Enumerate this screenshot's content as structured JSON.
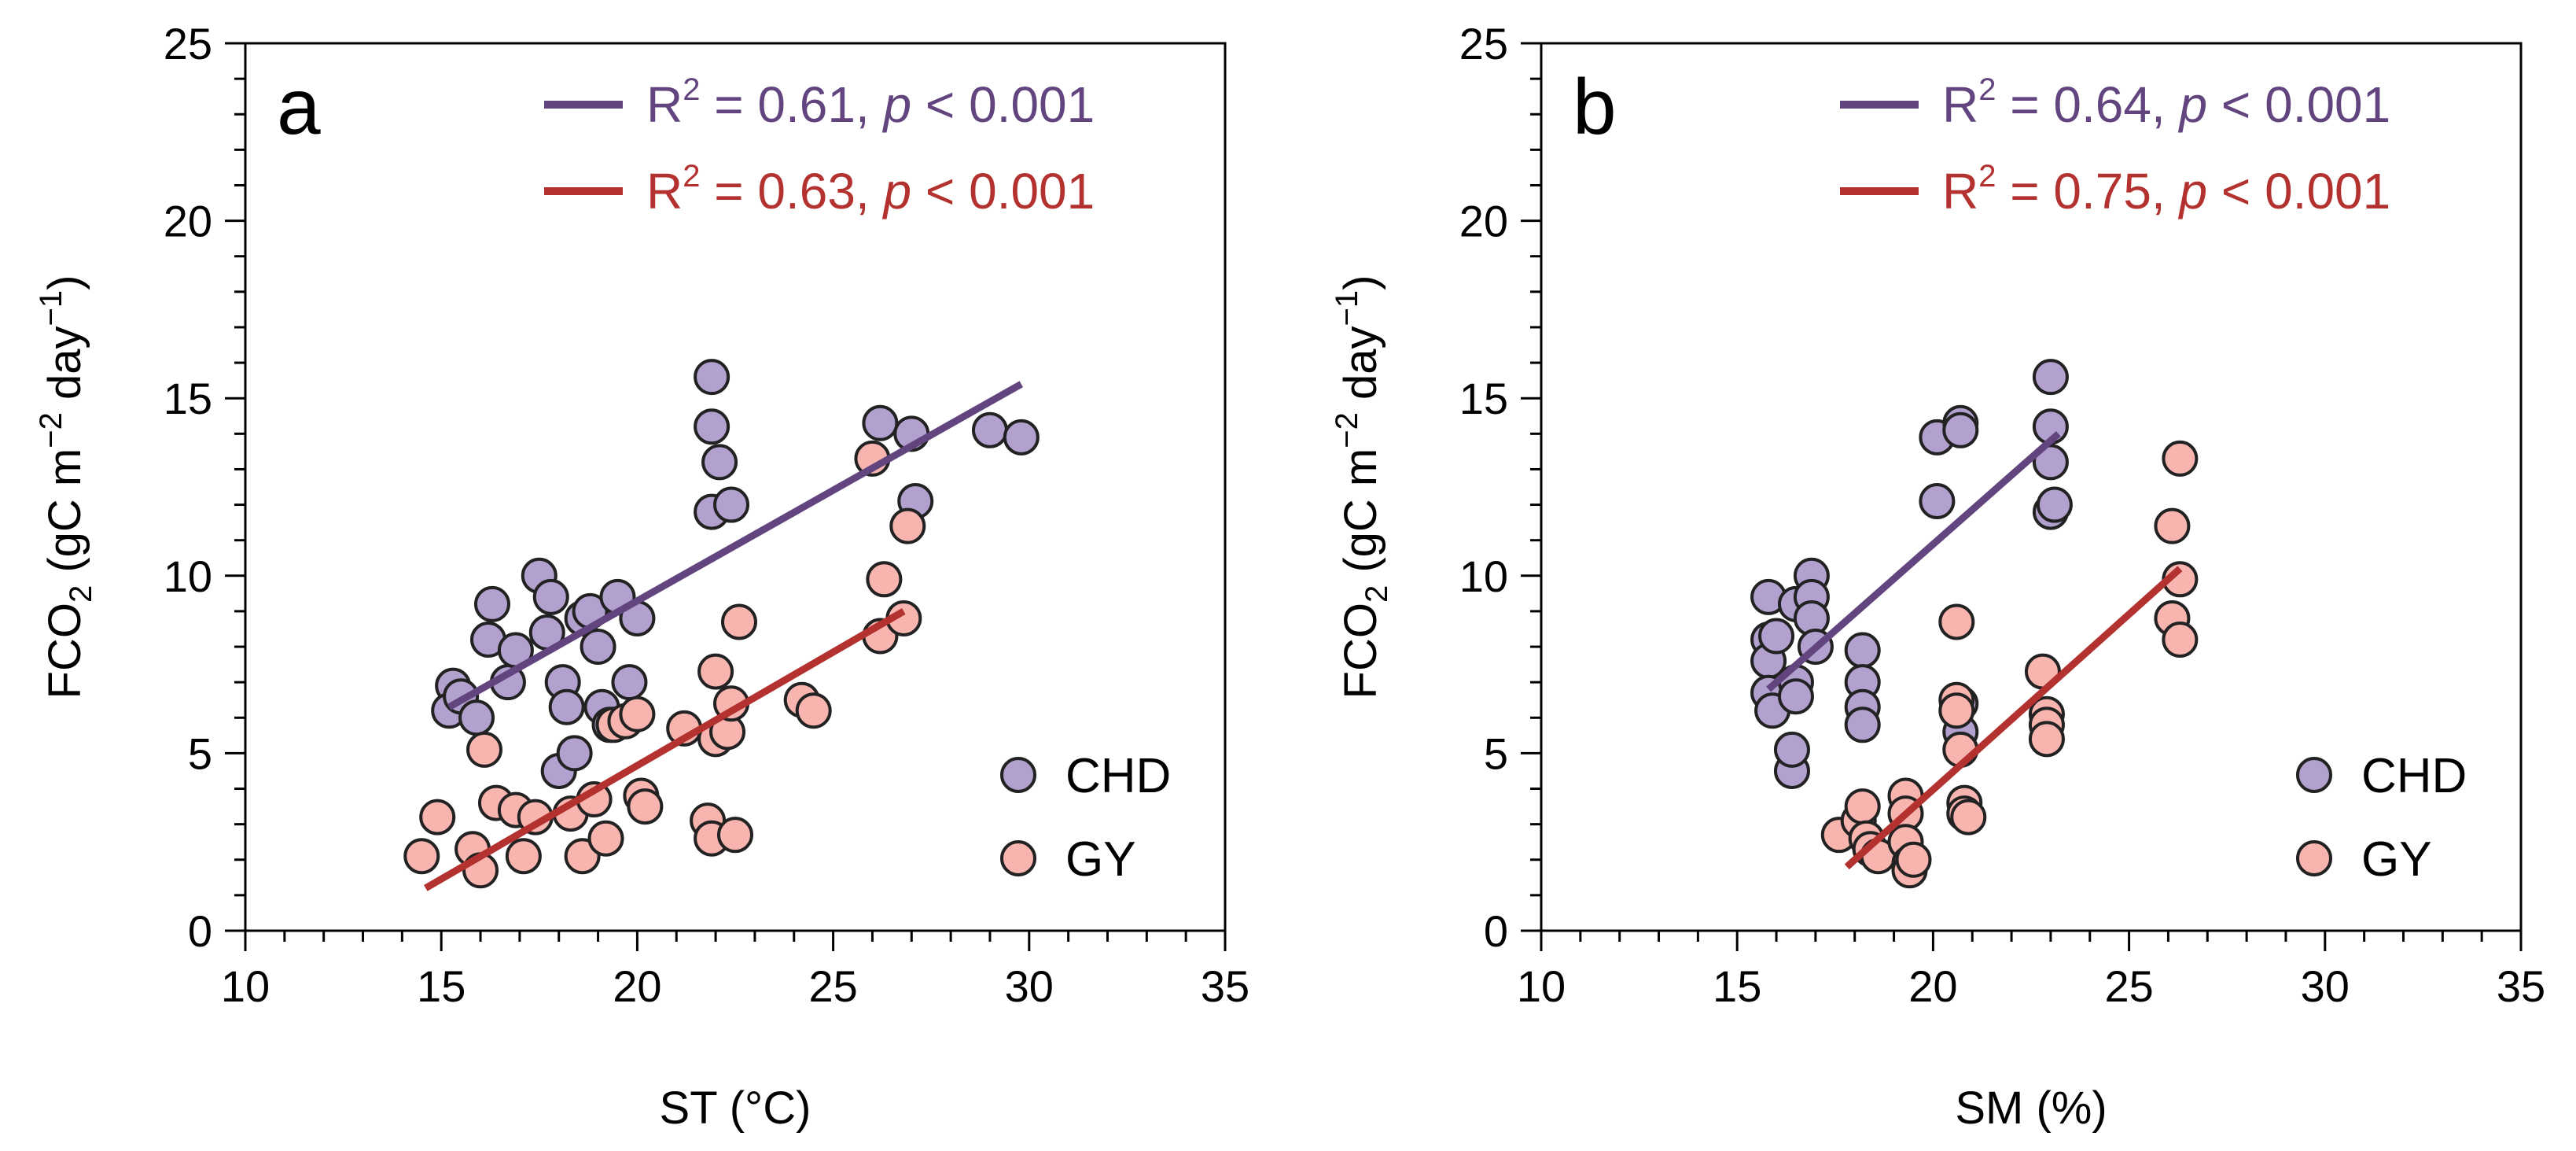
{
  "chart_data": [
    {
      "type": "scatter",
      "panel_label": "a",
      "xlabel": "ST (°C)",
      "ylabel": {
        "main": "FCO",
        "sub": "2",
        "unit_pre": " (gC m",
        "sup1": "−2",
        "unit_mid": " day",
        "sup2": "−1",
        "unit_post": ")"
      },
      "xlim": [
        10,
        35
      ],
      "ylim": [
        0,
        25
      ],
      "xticks": [
        "10",
        "15",
        "20",
        "25",
        "30",
        "35"
      ],
      "yticks": [
        "0",
        "5",
        "10",
        "15",
        "20",
        "25"
      ],
      "legend": {
        "position": "bottom-right",
        "entries": [
          "CHD",
          "GY"
        ]
      },
      "fits": [
        {
          "series": "CHD",
          "r2_label": "R",
          "r2_sup": "2",
          "r2_value": " = 0.61, ",
          "p_label": "p",
          "p_value": " < 0.001",
          "color": "#62457f",
          "x": [
            15.2,
            29.8
          ],
          "y": [
            6.3,
            15.4
          ]
        },
        {
          "series": "GY",
          "r2_label": "R",
          "r2_sup": "2",
          "r2_value": " = 0.63, ",
          "p_label": "p",
          "p_value": " < 0.001",
          "color": "#b3312e",
          "x": [
            14.6,
            26.8
          ],
          "y": [
            1.2,
            9.0
          ]
        }
      ],
      "series": [
        {
          "name": "CHD",
          "color": "#b2a1cf",
          "points": [
            [
              15.3,
              6.9
            ],
            [
              15.2,
              6.2
            ],
            [
              15.5,
              6.6
            ],
            [
              15.9,
              6.0
            ],
            [
              16.2,
              8.2
            ],
            [
              16.3,
              9.2
            ],
            [
              16.7,
              7.0
            ],
            [
              16.9,
              7.9
            ],
            [
              17.5,
              10.0
            ],
            [
              17.7,
              8.4
            ],
            [
              17.8,
              9.4
            ],
            [
              18.0,
              4.5
            ],
            [
              18.1,
              7.0
            ],
            [
              18.2,
              6.3
            ],
            [
              18.4,
              5.0
            ],
            [
              18.6,
              8.8
            ],
            [
              18.8,
              9.0
            ],
            [
              19.0,
              8.0
            ],
            [
              19.1,
              6.3
            ],
            [
              19.3,
              5.8
            ],
            [
              19.5,
              9.4
            ],
            [
              19.8,
              7.0
            ],
            [
              20.0,
              8.8
            ],
            [
              21.9,
              15.6
            ],
            [
              21.9,
              14.2
            ],
            [
              21.9,
              11.8
            ],
            [
              22.1,
              13.2
            ],
            [
              22.4,
              12.0
            ],
            [
              26.2,
              14.3
            ],
            [
              27.0,
              14.0
            ],
            [
              27.1,
              12.1
            ],
            [
              29.0,
              14.1
            ],
            [
              29.8,
              13.9
            ]
          ]
        },
        {
          "name": "GY",
          "color": "#f8b5b0",
          "points": [
            [
              14.5,
              2.1
            ],
            [
              14.9,
              3.2
            ],
            [
              15.8,
              2.3
            ],
            [
              16.0,
              1.7
            ],
            [
              16.1,
              5.1
            ],
            [
              16.4,
              3.6
            ],
            [
              16.9,
              3.4
            ],
            [
              17.1,
              2.1
            ],
            [
              17.4,
              3.2
            ],
            [
              18.3,
              3.3
            ],
            [
              18.6,
              2.1
            ],
            [
              18.9,
              3.7
            ],
            [
              19.2,
              2.6
            ],
            [
              19.4,
              5.8
            ],
            [
              19.7,
              5.9
            ],
            [
              20.0,
              6.1
            ],
            [
              20.1,
              3.8
            ],
            [
              20.2,
              3.5
            ],
            [
              21.2,
              5.7
            ],
            [
              21.8,
              3.1
            ],
            [
              21.9,
              2.6
            ],
            [
              22.0,
              7.3
            ],
            [
              22.0,
              5.4
            ],
            [
              22.3,
              5.6
            ],
            [
              22.4,
              6.4
            ],
            [
              22.5,
              2.7
            ],
            [
              22.6,
              8.7
            ],
            [
              24.2,
              6.5
            ],
            [
              24.5,
              6.2
            ],
            [
              26.0,
              13.3
            ],
            [
              26.2,
              8.3
            ],
            [
              26.3,
              9.9
            ],
            [
              26.8,
              8.8
            ],
            [
              26.9,
              11.4
            ]
          ]
        }
      ]
    },
    {
      "type": "scatter",
      "panel_label": "b",
      "xlabel": "SM (%)",
      "ylabel": {
        "main": "FCO",
        "sub": "2",
        "unit_pre": " (gC m",
        "sup1": "−2",
        "unit_mid": " day",
        "sup2": "−1",
        "unit_post": ")"
      },
      "xlim": [
        10,
        35
      ],
      "ylim": [
        0,
        25
      ],
      "xticks": [
        "10",
        "15",
        "20",
        "25",
        "30",
        "35"
      ],
      "yticks": [
        "0",
        "5",
        "10",
        "15",
        "20",
        "25"
      ],
      "legend": {
        "position": "bottom-right",
        "entries": [
          "CHD",
          "GY"
        ]
      },
      "fits": [
        {
          "series": "CHD",
          "r2_label": "R",
          "r2_sup": "2",
          "r2_value": " = 0.64, ",
          "p_label": "p",
          "p_value": " < 0.001",
          "color": "#62457f",
          "x": [
            15.8,
            23.2
          ],
          "y": [
            6.8,
            14.0
          ]
        },
        {
          "series": "GY",
          "r2_label": "R",
          "r2_sup": "2",
          "r2_value": " = 0.75, ",
          "p_label": "p",
          "p_value": " < 0.001",
          "color": "#b3312e",
          "x": [
            17.8,
            26.3
          ],
          "y": [
            1.8,
            10.2
          ]
        }
      ],
      "series": [
        {
          "name": "CHD",
          "color": "#b2a1cf",
          "points": [
            [
              15.8,
              9.4
            ],
            [
              15.8,
              8.2
            ],
            [
              15.8,
              7.6
            ],
            [
              15.8,
              6.7
            ],
            [
              15.9,
              6.2
            ],
            [
              16.0,
              8.3
            ],
            [
              16.4,
              4.5
            ],
            [
              16.4,
              5.1
            ],
            [
              16.5,
              9.2
            ],
            [
              16.5,
              7.0
            ],
            [
              16.5,
              6.6
            ],
            [
              16.9,
              10.0
            ],
            [
              16.9,
              9.4
            ],
            [
              16.9,
              8.8
            ],
            [
              17.0,
              8.0
            ],
            [
              18.2,
              7.9
            ],
            [
              18.2,
              7.0
            ],
            [
              18.2,
              6.3
            ],
            [
              18.2,
              5.8
            ],
            [
              20.1,
              13.9
            ],
            [
              20.1,
              12.1
            ],
            [
              20.7,
              14.3
            ],
            [
              20.7,
              14.1
            ],
            [
              20.7,
              6.4
            ],
            [
              20.7,
              5.6
            ],
            [
              23.0,
              15.6
            ],
            [
              23.0,
              14.2
            ],
            [
              23.0,
              13.2
            ],
            [
              23.0,
              11.8
            ],
            [
              23.1,
              12.0
            ]
          ]
        },
        {
          "name": "GY",
          "color": "#f8b5b0",
          "points": [
            [
              17.6,
              2.7
            ],
            [
              18.1,
              3.1
            ],
            [
              18.2,
              3.5
            ],
            [
              18.3,
              2.6
            ],
            [
              18.4,
              2.3
            ],
            [
              18.6,
              2.1
            ],
            [
              19.3,
              3.8
            ],
            [
              19.3,
              3.3
            ],
            [
              19.3,
              2.5
            ],
            [
              19.4,
              1.9
            ],
            [
              19.4,
              1.7
            ],
            [
              19.5,
              2.0
            ],
            [
              20.6,
              8.7
            ],
            [
              20.6,
              6.5
            ],
            [
              20.6,
              6.2
            ],
            [
              20.7,
              5.1
            ],
            [
              20.8,
              3.6
            ],
            [
              20.8,
              3.3
            ],
            [
              20.9,
              3.2
            ],
            [
              22.8,
              7.3
            ],
            [
              22.9,
              6.1
            ],
            [
              22.9,
              5.8
            ],
            [
              22.9,
              5.4
            ],
            [
              26.1,
              11.4
            ],
            [
              26.1,
              8.8
            ],
            [
              26.3,
              13.3
            ],
            [
              26.3,
              9.9
            ],
            [
              26.3,
              8.2
            ]
          ]
        }
      ]
    }
  ]
}
